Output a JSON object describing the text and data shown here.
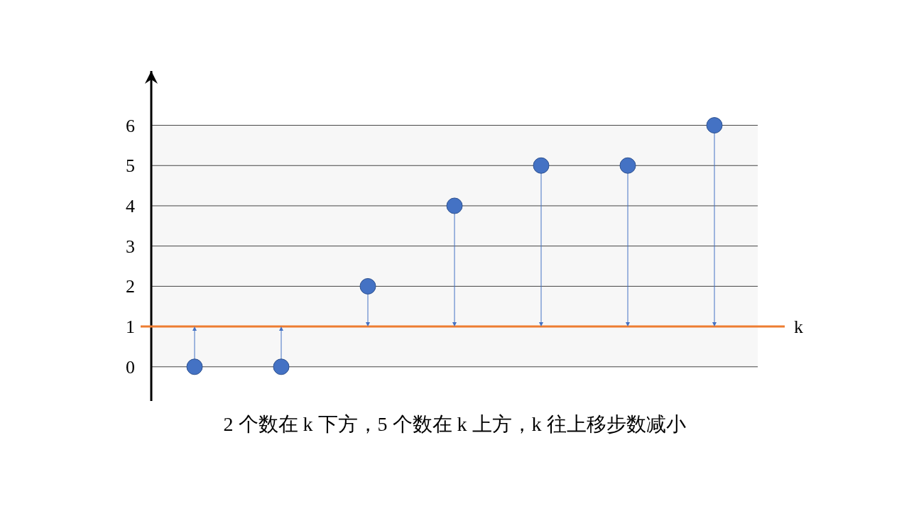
{
  "chart_data": {
    "type": "scatter",
    "categories": [
      null,
      null,
      null,
      null,
      null,
      null,
      null
    ],
    "series": [
      {
        "color": "#4472c4",
        "values": [
          0,
          0,
          2,
          4,
          5,
          5,
          6
        ]
      }
    ],
    "ylim": [
      -0.85,
      7.35
    ],
    "yticks": [
      0,
      1,
      2,
      3,
      4,
      5,
      6
    ],
    "grid": "y",
    "marker": "circle",
    "ref_lines": [
      {
        "axis": "y",
        "value": 1,
        "label": "k",
        "color": "#ed7d31"
      }
    ],
    "annotations": [
      "2 个数在 k 下方，5 个数在 k 上方，k 往上移步数减小"
    ]
  }
}
